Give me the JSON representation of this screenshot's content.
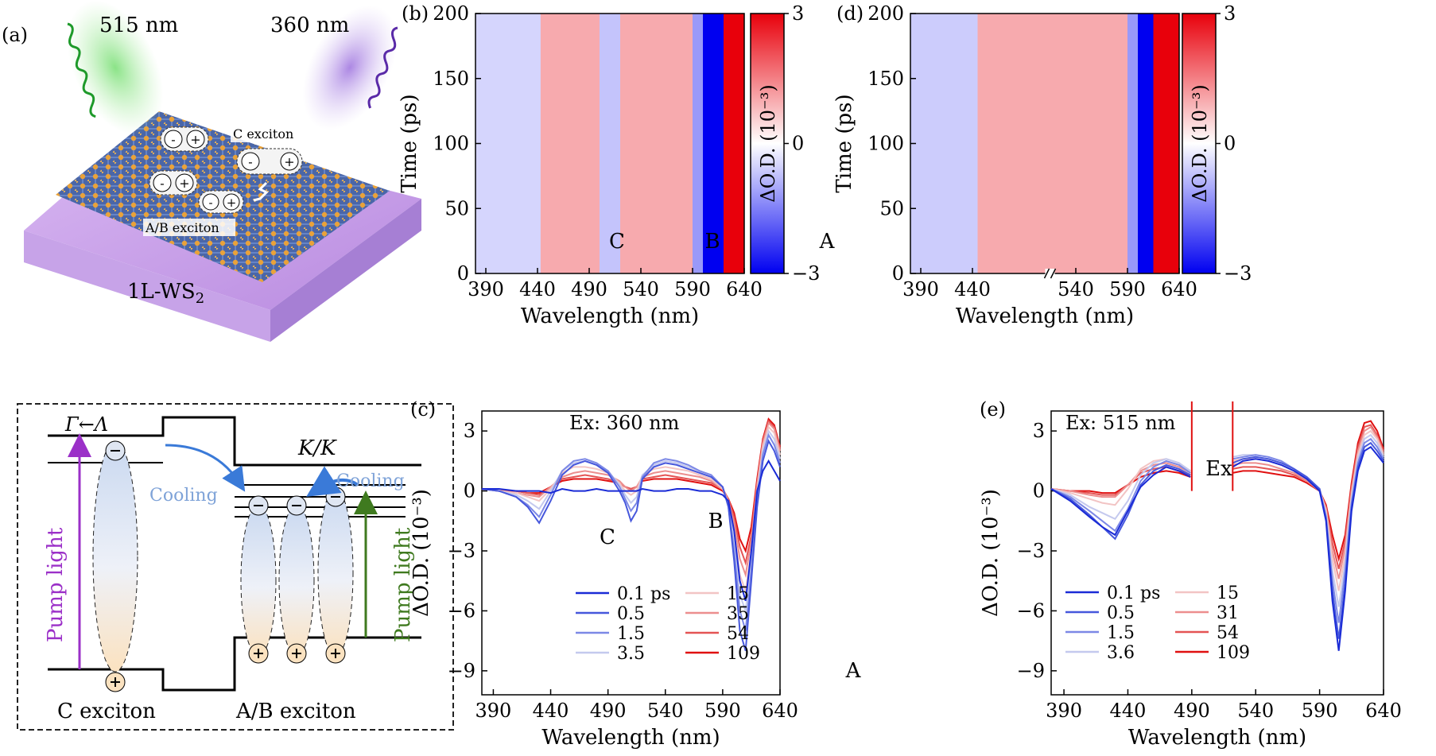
{
  "panel_a": {
    "label": "(a)",
    "beam_left": "515 nm",
    "beam_right": "360 nm",
    "c_exciton": "C exciton",
    "ab_exciton": "A/B exciton",
    "material_base": "1L-WS",
    "material_sub": "2",
    "minus": "-",
    "plus": "+"
  },
  "panel_diagram": {
    "gamma_lambda": "Γ←Λ",
    "kk": "K/K",
    "cooling_left": "Cooling",
    "cooling_right": "Cooling",
    "pump_left": "Pump light",
    "pump_right": "Pump light",
    "c_exciton": "C exciton",
    "ab_exciton": "A/B exciton",
    "colors": {
      "pump_left": "#9b30c8",
      "pump_right": "#3f7a1f",
      "cooling": "#7fa3d8"
    }
  },
  "chart_data": [
    {
      "id": "b",
      "label": "(b)",
      "type": "heatmap",
      "xlabel": "Wavelength (nm)",
      "ylabel": "Time (ps)",
      "xticks": [
        390,
        440,
        490,
        540,
        590,
        640
      ],
      "yticks": [
        0,
        50,
        100,
        150,
        200
      ],
      "xlim": [
        380,
        640
      ],
      "ylim": [
        0,
        200
      ],
      "colorbar": {
        "label": "ΔO.D. (10⁻³)",
        "ticks": [
          "3",
          "0",
          "−3"
        ],
        "range": [
          -3,
          3
        ]
      },
      "annotations": [
        "C",
        "B",
        "A"
      ],
      "bands": [
        {
          "from": 380,
          "to": 443,
          "value": -0.5
        },
        {
          "from": 443,
          "to": 500,
          "value": 1.0
        },
        {
          "from": 500,
          "to": 520,
          "value": -0.7
        },
        {
          "from": 520,
          "to": 590,
          "value": 1.0
        },
        {
          "from": 590,
          "to": 600,
          "value": -1.2
        },
        {
          "from": 600,
          "to": 620,
          "value": -3.0
        },
        {
          "from": 620,
          "to": 640,
          "value": 3.0
        }
      ]
    },
    {
      "id": "d",
      "label": "(d)",
      "type": "heatmap",
      "xlabel": "Wavelength (nm)",
      "ylabel": "Time (ps)",
      "xticks": [
        390,
        440,
        540,
        590,
        640
      ],
      "yticks": [
        0,
        50,
        100,
        150,
        200
      ],
      "xlim": [
        380,
        640
      ],
      "ylim": [
        0,
        200
      ],
      "axis_break_at": 515,
      "colorbar": {
        "label": "ΔO.D. (10⁻³)",
        "ticks": [
          "3",
          "0",
          "−3"
        ],
        "range": [
          -3,
          3
        ]
      },
      "annotations": [
        "Ex"
      ],
      "bands": [
        {
          "from": 380,
          "to": 445,
          "value": -0.6
        },
        {
          "from": 445,
          "to": 590,
          "value": 1.0
        },
        {
          "from": 590,
          "to": 600,
          "value": -1.2
        },
        {
          "from": 600,
          "to": 615,
          "value": -3.0
        },
        {
          "from": 615,
          "to": 640,
          "value": 3.0
        }
      ]
    },
    {
      "id": "c",
      "label": "(c)",
      "type": "line",
      "title": "Ex: 360 nm",
      "xlabel": "Wavelength (nm)",
      "ylabel": "ΔO.D. (10⁻³)",
      "xticks": [
        390,
        440,
        490,
        540,
        590,
        640
      ],
      "yticks": [
        -9,
        -6,
        -3,
        0,
        3
      ],
      "ytick_labels": [
        "−9",
        "−6",
        "−3",
        "0",
        "3"
      ],
      "xlim": [
        380,
        640
      ],
      "ylim": [
        -10.2,
        4.0
      ],
      "annotations": [
        "C",
        "B",
        "A"
      ],
      "x": [
        380,
        395,
        410,
        420,
        430,
        440,
        450,
        460,
        470,
        480,
        490,
        500,
        505,
        510,
        515,
        520,
        530,
        540,
        550,
        560,
        570,
        580,
        590,
        595,
        600,
        605,
        610,
        615,
        620,
        625,
        630,
        635,
        640
      ],
      "series": [
        {
          "name": "0.1 ps",
          "color": "#1a2bd6",
          "values": [
            0.1,
            0.1,
            0.0,
            0.0,
            0.0,
            -0.1,
            0.1,
            0.0,
            0.0,
            0.1,
            0.0,
            0.0,
            0.0,
            0.0,
            0.0,
            0.1,
            0.0,
            0.0,
            0.1,
            0.1,
            0.0,
            0.0,
            -0.2,
            -0.5,
            -2.0,
            -4.5,
            -5.5,
            -3.0,
            0.0,
            1.0,
            1.5,
            1.0,
            0.5
          ]
        },
        {
          "name": "0.5",
          "color": "#4657dc",
          "values": [
            0.1,
            0.0,
            -0.3,
            -0.8,
            -1.6,
            -0.5,
            0.8,
            1.3,
            1.5,
            1.3,
            0.9,
            0.0,
            -0.6,
            -1.5,
            -1.0,
            0.6,
            1.2,
            1.4,
            1.3,
            1.1,
            0.9,
            0.7,
            0.2,
            -0.8,
            -3.5,
            -7.0,
            -8.0,
            -4.5,
            -0.8,
            1.5,
            2.5,
            2.0,
            1.2
          ]
        },
        {
          "name": "1.5",
          "color": "#7c88e6",
          "values": [
            0.1,
            0.0,
            -0.3,
            -0.7,
            -1.3,
            -0.2,
            1.0,
            1.5,
            1.6,
            1.4,
            1.0,
            0.2,
            -0.4,
            -1.0,
            -0.6,
            0.7,
            1.4,
            1.6,
            1.5,
            1.3,
            1.0,
            0.8,
            0.2,
            -0.8,
            -3.0,
            -6.0,
            -7.0,
            -4.0,
            -0.5,
            1.8,
            2.8,
            2.3,
            1.4
          ]
        },
        {
          "name": "3.5",
          "color": "#c4c9ee",
          "values": [
            0.1,
            0.0,
            -0.2,
            -0.5,
            -0.9,
            0.0,
            1.0,
            1.4,
            1.5,
            1.3,
            1.0,
            0.3,
            -0.2,
            -0.6,
            -0.3,
            0.8,
            1.3,
            1.5,
            1.4,
            1.2,
            1.0,
            0.8,
            0.2,
            -0.7,
            -2.6,
            -5.2,
            -6.0,
            -3.5,
            -0.2,
            2.0,
            3.0,
            2.6,
            1.6
          ]
        },
        {
          "name": "15",
          "color": "#f2c4c4",
          "values": [
            0.1,
            0.0,
            -0.1,
            -0.3,
            -0.5,
            0.1,
            0.9,
            1.2,
            1.2,
            1.1,
            0.9,
            0.4,
            0.0,
            -0.2,
            0.0,
            0.8,
            1.1,
            1.2,
            1.1,
            1.0,
            0.8,
            0.6,
            0.1,
            -0.6,
            -2.0,
            -4.2,
            -5.0,
            -3.0,
            0.0,
            2.2,
            3.2,
            2.9,
            1.8
          ]
        },
        {
          "name": "35",
          "color": "#ec8e8e",
          "values": [
            0.1,
            0.0,
            -0.1,
            -0.2,
            -0.3,
            0.2,
            0.7,
            0.9,
            1.0,
            0.9,
            0.8,
            0.5,
            0.2,
            0.0,
            0.2,
            0.7,
            0.9,
            1.0,
            0.9,
            0.8,
            0.7,
            0.5,
            0.1,
            -0.5,
            -1.6,
            -3.4,
            -4.2,
            -2.5,
            0.3,
            2.4,
            3.4,
            3.1,
            2.0
          ]
        },
        {
          "name": "54",
          "color": "#e45454",
          "values": [
            0.1,
            0.0,
            0.0,
            -0.1,
            -0.2,
            0.2,
            0.6,
            0.7,
            0.8,
            0.7,
            0.6,
            0.4,
            0.2,
            0.1,
            0.2,
            0.6,
            0.7,
            0.8,
            0.7,
            0.6,
            0.5,
            0.4,
            0.1,
            -0.4,
            -1.3,
            -2.8,
            -3.6,
            -2.2,
            0.4,
            2.5,
            3.5,
            3.2,
            2.1
          ]
        },
        {
          "name": "109",
          "color": "#e01010",
          "values": [
            0.1,
            0.0,
            0.0,
            -0.1,
            -0.1,
            0.2,
            0.5,
            0.6,
            0.6,
            0.6,
            0.5,
            0.4,
            0.2,
            0.1,
            0.2,
            0.5,
            0.6,
            0.6,
            0.6,
            0.5,
            0.4,
            0.3,
            0.0,
            -0.4,
            -1.1,
            -2.4,
            -3.0,
            -1.8,
            0.6,
            2.6,
            3.6,
            3.3,
            2.2
          ]
        }
      ]
    },
    {
      "id": "e",
      "label": "(e)",
      "type": "line",
      "title": "Ex: 515 nm",
      "xlabel": "Wavelength (nm)",
      "ylabel": "ΔO.D. (10⁻³)",
      "xticks": [
        390,
        440,
        490,
        540,
        590,
        640
      ],
      "yticks": [
        -9,
        -6,
        -3,
        0,
        3
      ],
      "ytick_labels": [
        "−9",
        "−6",
        "−3",
        "0",
        "3"
      ],
      "xlim": [
        380,
        640
      ],
      "ylim": [
        -10.2,
        4.0
      ],
      "annotations": [
        "Ex"
      ],
      "gap": [
        490,
        522
      ],
      "x": [
        380,
        395,
        410,
        420,
        430,
        440,
        450,
        460,
        470,
        480,
        489,
        522,
        530,
        540,
        550,
        560,
        570,
        580,
        590,
        595,
        600,
        605,
        610,
        615,
        620,
        625,
        630,
        635,
        640
      ],
      "series": [
        {
          "name": "0.1 ps",
          "color": "#1a2bd6",
          "values": [
            0.1,
            -0.5,
            -1.3,
            -1.8,
            -2.2,
            -1.0,
            0.2,
            0.8,
            1.2,
            1.0,
            0.7,
            1.2,
            1.5,
            1.6,
            1.5,
            1.3,
            1.0,
            0.6,
            0.0,
            -1.5,
            -5.5,
            -8.0,
            -5.0,
            -1.0,
            1.0,
            2.0,
            2.2,
            1.8,
            1.4
          ]
        },
        {
          "name": "0.5",
          "color": "#4657dc",
          "values": [
            0.1,
            -0.4,
            -1.2,
            -1.8,
            -2.4,
            -1.2,
            0.3,
            1.0,
            1.3,
            1.1,
            0.8,
            1.4,
            1.6,
            1.7,
            1.6,
            1.4,
            1.1,
            0.7,
            0.1,
            -1.4,
            -5.0,
            -7.4,
            -4.6,
            -0.8,
            1.2,
            2.2,
            2.4,
            2.0,
            1.5
          ]
        },
        {
          "name": "1.5",
          "color": "#7c88e6",
          "values": [
            0.1,
            -0.3,
            -1.0,
            -1.5,
            -2.0,
            -0.9,
            0.5,
            1.2,
            1.5,
            1.3,
            0.9,
            1.6,
            1.7,
            1.8,
            1.7,
            1.5,
            1.1,
            0.7,
            0.1,
            -1.3,
            -4.5,
            -6.6,
            -4.0,
            -0.6,
            1.4,
            2.4,
            2.6,
            2.2,
            1.6
          ]
        },
        {
          "name": "3.6",
          "color": "#c4c9ee",
          "values": [
            0.1,
            -0.2,
            -0.8,
            -1.1,
            -1.4,
            -0.5,
            0.8,
            1.4,
            1.6,
            1.4,
            1.0,
            1.7,
            1.8,
            1.8,
            1.7,
            1.5,
            1.1,
            0.7,
            0.1,
            -1.2,
            -4.0,
            -5.8,
            -3.6,
            -0.4,
            1.6,
            2.6,
            2.8,
            2.4,
            1.7
          ]
        },
        {
          "name": "15",
          "color": "#f2c4c4",
          "values": [
            0.1,
            -0.1,
            -0.4,
            -0.6,
            -0.7,
            0.1,
            1.1,
            1.5,
            1.6,
            1.4,
            1.0,
            1.5,
            1.6,
            1.6,
            1.5,
            1.3,
            1.0,
            0.6,
            0.1,
            -1.0,
            -3.4,
            -5.0,
            -3.2,
            -0.2,
            1.8,
            2.8,
            3.0,
            2.6,
            1.8
          ]
        },
        {
          "name": "31",
          "color": "#ec8e8e",
          "values": [
            0.1,
            0.0,
            -0.2,
            -0.3,
            -0.3,
            0.3,
            1.0,
            1.3,
            1.4,
            1.2,
            0.9,
            1.3,
            1.4,
            1.4,
            1.3,
            1.1,
            0.9,
            0.5,
            0.0,
            -0.9,
            -3.0,
            -4.4,
            -2.8,
            0.0,
            2.0,
            3.0,
            3.2,
            2.7,
            1.9
          ]
        },
        {
          "name": "54",
          "color": "#e45454",
          "values": [
            0.1,
            0.0,
            -0.1,
            -0.2,
            -0.2,
            0.3,
            0.9,
            1.1,
            1.2,
            1.0,
            0.8,
            1.1,
            1.2,
            1.2,
            1.1,
            1.0,
            0.8,
            0.5,
            0.0,
            -0.8,
            -2.6,
            -3.9,
            -2.5,
            0.2,
            2.2,
            3.2,
            3.3,
            2.8,
            2.0
          ]
        },
        {
          "name": "109",
          "color": "#e01010",
          "values": [
            0.1,
            0.0,
            0.0,
            -0.1,
            -0.1,
            0.3,
            0.7,
            0.9,
            1.0,
            0.9,
            0.7,
            0.9,
            1.0,
            1.0,
            0.9,
            0.8,
            0.7,
            0.4,
            0.0,
            -0.7,
            -2.2,
            -3.4,
            -2.2,
            0.4,
            2.4,
            3.4,
            3.5,
            3.0,
            2.1
          ]
        }
      ]
    }
  ]
}
